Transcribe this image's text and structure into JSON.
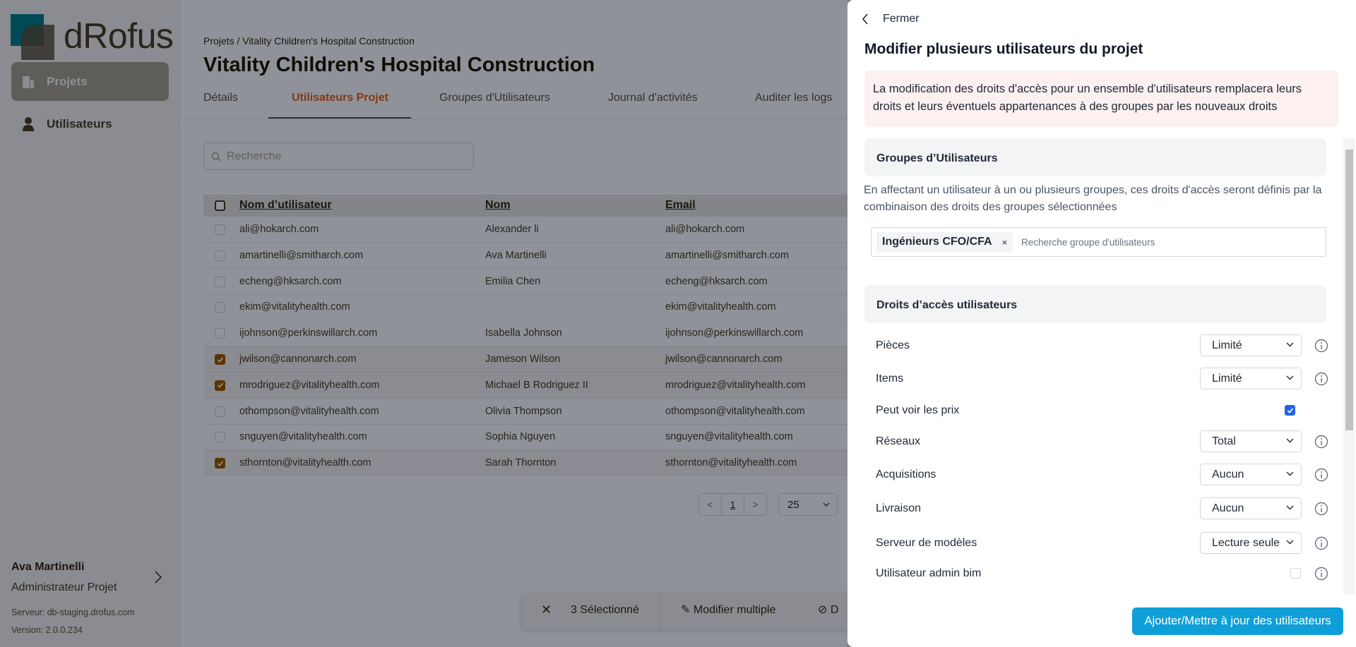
{
  "sidebar": {
    "logo": "dRofus",
    "items": [
      {
        "label": "Projets",
        "icon": "building-icon",
        "active": true
      },
      {
        "label": "Utilisateurs",
        "icon": "user-icon"
      }
    ],
    "user_name": "Ava Martinelli",
    "user_role": "Administrateur Projet",
    "server": "Serveur: db-staging.drofus.com",
    "version": "Version: 2.0.0.234"
  },
  "main": {
    "breadcrumb": "Projets / Vitality Children's Hospital Construction",
    "title": "Vitality Children's Hospital Construction",
    "tabs": [
      "Détails",
      "Utilisateurs Projet",
      "Groupes d'Utilisateurs",
      "Journal d'activités",
      "Auditer les logs"
    ],
    "search_placeholder": "Recherche",
    "columns": [
      "Nom d’utilisateur",
      "Nom",
      "Email"
    ],
    "rows": [
      {
        "username": "ali@hokarch.com",
        "name": "Alexander li",
        "email": "ali@hokarch.com",
        "checked": false
      },
      {
        "username": "amartinelli@smitharch.com",
        "name": "Ava Martinelli",
        "email": "amartinelli@smitharch.com",
        "checked": false
      },
      {
        "username": "echeng@hksarch.com",
        "name": "Emilia Chen",
        "email": "echeng@hksarch.com",
        "checked": false
      },
      {
        "username": "ekim@vitalityhealth.com",
        "name": "",
        "email": "ekim@vitalityhealth.com",
        "checked": false
      },
      {
        "username": "ijohnson@perkinswillarch.com",
        "name": "Isabella Johnson",
        "email": "ijohnson@perkinswillarch.com",
        "checked": false
      },
      {
        "username": "jwilson@cannonarch.com",
        "name": "Jameson Wilson",
        "email": "jwilson@cannonarch.com",
        "checked": true
      },
      {
        "username": "mrodriguez@vitalityhealth.com",
        "name": "Michael B Rodriguez II",
        "email": "mrodriguez@vitalityhealth.com",
        "checked": true
      },
      {
        "username": "othompson@vitalityhealth.com",
        "name": "Olivia Thompson",
        "email": "othompson@vitalityhealth.com",
        "checked": false
      },
      {
        "username": "snguyen@vitalityhealth.com",
        "name": "Sophia Nguyen",
        "email": "snguyen@vitalityhealth.com",
        "checked": false
      },
      {
        "username": "sthornton@vitalityhealth.com",
        "name": "Sarah Thornton",
        "email": "sthornton@vitalityhealth.com",
        "checked": true
      }
    ],
    "pagination": {
      "prev": "<",
      "page": "1",
      "next": ">",
      "page_size": "25"
    },
    "selection_bar": {
      "count": "3 Sélectionné",
      "edit": "Modifier multiple",
      "other": "D"
    }
  },
  "panel": {
    "close": "Fermer",
    "title": "Modifier plusieurs utilisateurs du projet",
    "warning": "La modification des droits d'accès pour un ensemble d'utilisateurs remplacera leurs droits et leurs éventuels appartenances à des groupes par les nouveaux droits",
    "groups_title": "Groupes d’Utilisateurs",
    "groups_desc": "En affectant un utilisateur à un ou plusieurs groupes, ces droits d'accès seront définis par la combinaison des droits des groupes sélectionnées",
    "group_chip": "Ingénieurs CFO/CFA",
    "chip_remove": "×",
    "group_placeholder": "Recherche groupe d'utilisateurs",
    "rights_title": "Droits d’accès utilisateurs",
    "rights": [
      {
        "label": "Pièces",
        "type": "select",
        "value": "Limité"
      },
      {
        "label": "Items",
        "type": "select",
        "value": "Limité"
      },
      {
        "label": "Peut voir les prix",
        "type": "checkbox",
        "checked": true
      },
      {
        "label": "Réseaux",
        "type": "select",
        "value": "Total"
      },
      {
        "label": "Acquisitions",
        "type": "select",
        "value": "Aucun"
      },
      {
        "label": "Livraison",
        "type": "select",
        "value": "Aucun"
      },
      {
        "label": "Serveur de modèles",
        "type": "select",
        "value": "Lecture seule"
      },
      {
        "label": "Utilisateur admin bim",
        "type": "checkbox",
        "checked": false
      }
    ],
    "submit": "Ajouter/Mettre à jour des utilisateurs"
  },
  "colors": {
    "accent": "#0e9fd8",
    "checkbox": "#2563eb",
    "warning_bg": "#fdf0f0"
  }
}
